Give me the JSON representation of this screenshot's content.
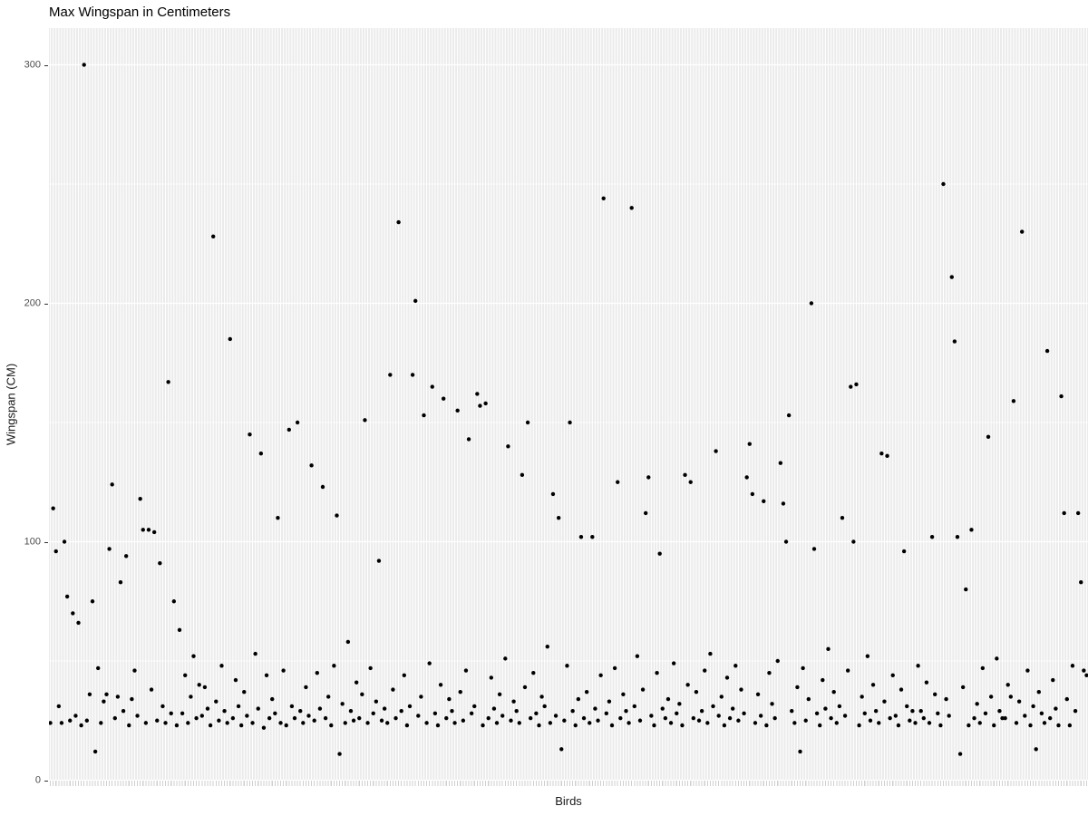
{
  "chart_data": {
    "type": "scatter",
    "title": "Max Wingspan in Centimeters",
    "xlabel": "Birds",
    "ylabel": "Wingspan (CM)",
    "x_description": "one point per bird category; individual bird tick marks shown without labels",
    "y_ticks": [
      0,
      100,
      200,
      300
    ],
    "y_tick_labels": [
      "0",
      "100",
      "200",
      "300"
    ],
    "y_minor_gridlines": [
      50,
      150,
      250
    ],
    "ylim": [
      0,
      315
    ],
    "grid": "white major/minor gridlines on grey panel, one vertical gridline per bird",
    "legend": "none",
    "point_shape": "filled circle",
    "colors": {
      "point": "#000000",
      "panel_bg": "#EBEBEB",
      "gridline": "#FFFFFF",
      "tick_text": "#4D4D4D",
      "axis_title_text": "#1A1A1A",
      "title_text": "#000000",
      "tick_mark": "#333333",
      "category_tick": "#CFCFCF"
    },
    "values": [
      24,
      114,
      96,
      31,
      24,
      100,
      77,
      25,
      70,
      27,
      66,
      23,
      300,
      25,
      36,
      75,
      12,
      47,
      24,
      33,
      36,
      97,
      124,
      26,
      35,
      83,
      29,
      94,
      23,
      34,
      46,
      27,
      118,
      105,
      24,
      105,
      38,
      104,
      25,
      91,
      31,
      24,
      167,
      28,
      75,
      23,
      63,
      28,
      44,
      24,
      35,
      52,
      26,
      40,
      27,
      39,
      30,
      23,
      228,
      33,
      25,
      48,
      29,
      24,
      185,
      26,
      42,
      31,
      23,
      37,
      27,
      145,
      24,
      53,
      30,
      137,
      22,
      44,
      26,
      34,
      28,
      110,
      24,
      46,
      23,
      147,
      31,
      26,
      150,
      29,
      24,
      39,
      27,
      132,
      25,
      45,
      30,
      123,
      26,
      35,
      23,
      48,
      111,
      11,
      32,
      24,
      58,
      29,
      25,
      41,
      26,
      36,
      151,
      24,
      47,
      28,
      33,
      92,
      25,
      30,
      24,
      170,
      38,
      26,
      234,
      29,
      44,
      23,
      31,
      170,
      201,
      27,
      35,
      153,
      24,
      49,
      165,
      28,
      23,
      40,
      160,
      26,
      34,
      29,
      24,
      155,
      37,
      25,
      46,
      143,
      28,
      31,
      162,
      157,
      23,
      158,
      26,
      43,
      30,
      24,
      36,
      27,
      51,
      140,
      25,
      33,
      29,
      24,
      128,
      39,
      150,
      26,
      45,
      28,
      23,
      35,
      31,
      56,
      24,
      120,
      27,
      110,
      13,
      25,
      48,
      150,
      29,
      23,
      34,
      102,
      26,
      37,
      24,
      102,
      30,
      25,
      44,
      244,
      28,
      33,
      23,
      47,
      125,
      26,
      36,
      29,
      24,
      240,
      31,
      52,
      25,
      38,
      112,
      127,
      27,
      23,
      45,
      95,
      30,
      26,
      34,
      24,
      49,
      28,
      32,
      23,
      128,
      40,
      125,
      26,
      37,
      25,
      29,
      46,
      24,
      53,
      31,
      138,
      27,
      35,
      23,
      43,
      26,
      30,
      48,
      25,
      38,
      28,
      127,
      141,
      120,
      24,
      36,
      27,
      117,
      23,
      45,
      32,
      26,
      50,
      133,
      116,
      100,
      153,
      29,
      24,
      39,
      12,
      47,
      25,
      34,
      200,
      97,
      28,
      23,
      42,
      30,
      55,
      26,
      37,
      24,
      31,
      110,
      27,
      46,
      165,
      100,
      166,
      23,
      35,
      28,
      52,
      25,
      40,
      29,
      24,
      137,
      33,
      136,
      26,
      44,
      27,
      23,
      38,
      96,
      31,
      25,
      29,
      24,
      48,
      29,
      26,
      41,
      24,
      102,
      36,
      28,
      23,
      250,
      34,
      27,
      211,
      184,
      102,
      11,
      39,
      80,
      23,
      105,
      26,
      32,
      24,
      47,
      28,
      144,
      35,
      23,
      51,
      29,
      26,
      26,
      40,
      35,
      159,
      24,
      33,
      230,
      27,
      46,
      23,
      31,
      13,
      37,
      28,
      24,
      180,
      26,
      42,
      30,
      23,
      161,
      112,
      34,
      23,
      48,
      29,
      112,
      83,
      46,
      44
    ]
  }
}
